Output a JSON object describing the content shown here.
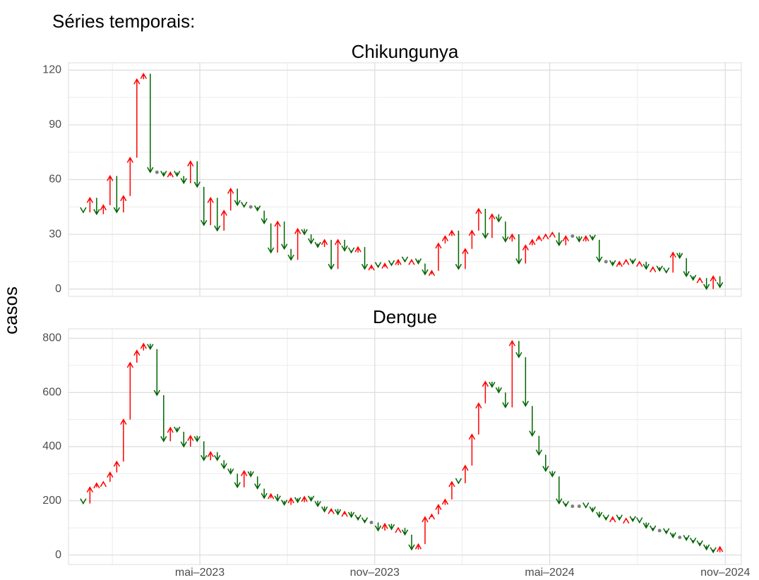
{
  "title": "Séries temporais:",
  "y_label": "casos",
  "x_axis": {
    "xlim": [
      -2.2,
      98.2
    ],
    "xticks": [
      {
        "value": 17.4,
        "label": "mai–2023"
      },
      {
        "value": 43.5,
        "label": "nov–2023"
      },
      {
        "value": 69.6,
        "label": "mai–2024"
      },
      {
        "value": 95.8,
        "label": "nov–2024"
      }
    ]
  },
  "up_color": "#ff0000",
  "down_color": "#006400",
  "flat_color": "#808080",
  "grid": true,
  "chart_data": [
    {
      "type": "arrow",
      "title": "Chikungunya",
      "categories": [
        null,
        null,
        null,
        null,
        null,
        null,
        null,
        null,
        null,
        null,
        null,
        null,
        null,
        null,
        null,
        null,
        null,
        null,
        null,
        null,
        null,
        null,
        null,
        null,
        null,
        null,
        null,
        null,
        null,
        null,
        null,
        null,
        null,
        null,
        null,
        null,
        null,
        null,
        null,
        null,
        null,
        null,
        null,
        null,
        null,
        null,
        null,
        null,
        null,
        null,
        null,
        null,
        null,
        null,
        null,
        null,
        null,
        null,
        null,
        null,
        null,
        null,
        null,
        null,
        null,
        null,
        null,
        null,
        null,
        null,
        null,
        null,
        null,
        null,
        null,
        null,
        null,
        null,
        null,
        null,
        null,
        null,
        null,
        null,
        null,
        null,
        null,
        null,
        null,
        null,
        null,
        null,
        null,
        null,
        null,
        null
      ],
      "values": [
        42,
        50,
        41,
        46,
        62,
        42,
        51,
        72,
        115,
        118,
        64,
        64,
        62,
        64,
        62,
        58,
        70,
        56,
        35,
        50,
        32,
        43,
        55,
        46,
        45,
        45,
        43,
        36,
        20,
        37,
        22,
        16,
        33,
        30,
        25,
        23,
        27,
        11,
        27,
        21,
        20,
        23,
        11,
        13,
        12,
        14,
        13,
        16,
        15,
        16,
        14,
        8,
        10,
        25,
        29,
        32,
        11,
        22,
        32,
        44,
        28,
        41,
        37,
        26,
        30,
        14,
        24,
        27,
        29,
        30,
        31,
        24,
        29,
        29,
        26,
        29,
        27,
        15,
        15,
        13,
        15,
        16,
        14,
        15,
        11,
        12,
        10,
        9,
        20,
        17,
        7,
        5,
        6,
        0,
        7,
        1
      ],
      "ylim": [
        -4,
        124
      ],
      "yticks": [
        0,
        30,
        60,
        90,
        120
      ]
    },
    {
      "type": "arrow",
      "title": "Dengue",
      "categories": [
        null,
        null,
        null,
        null,
        null,
        null,
        null,
        null,
        null,
        null,
        null,
        null,
        null,
        null,
        null,
        null,
        null,
        null,
        null,
        null,
        null,
        null,
        null,
        null,
        null,
        null,
        null,
        null,
        null,
        null,
        null,
        null,
        null,
        null,
        null,
        null,
        null,
        null,
        null,
        null,
        null,
        null,
        null,
        null,
        null,
        null,
        null,
        null,
        null,
        null,
        null,
        null,
        null,
        null,
        null,
        null,
        null,
        null,
        null,
        null,
        null,
        null,
        null,
        null,
        null,
        null,
        null,
        null,
        null,
        null,
        null,
        null,
        null,
        null,
        null,
        null,
        null,
        null,
        null,
        null,
        null,
        null,
        null,
        null,
        null,
        null,
        null,
        null,
        null,
        null,
        null,
        null,
        null,
        null,
        null,
        null
      ],
      "values": [
        190,
        250,
        265,
        270,
        305,
        345,
        500,
        710,
        755,
        780,
        760,
        590,
        420,
        470,
        455,
        400,
        440,
        420,
        350,
        380,
        350,
        320,
        300,
        250,
        310,
        290,
        245,
        210,
        225,
        200,
        185,
        210,
        195,
        215,
        200,
        180,
        160,
        170,
        150,
        160,
        140,
        130,
        120,
        120,
        90,
        115,
        95,
        100,
        75,
        20,
        40,
        140,
        150,
        185,
        205,
        270,
        265,
        330,
        445,
        560,
        640,
        620,
        600,
        545,
        790,
        730,
        550,
        440,
        370,
        310,
        290,
        190,
        180,
        180,
        180,
        175,
        160,
        140,
        130,
        140,
        130,
        135,
        125,
        120,
        100,
        90,
        90,
        80,
        65,
        65,
        55,
        45,
        35,
        20,
        10,
        30
      ],
      "ylim": [
        -35,
        835
      ],
      "yticks": [
        0,
        200,
        400,
        600,
        800
      ]
    }
  ]
}
